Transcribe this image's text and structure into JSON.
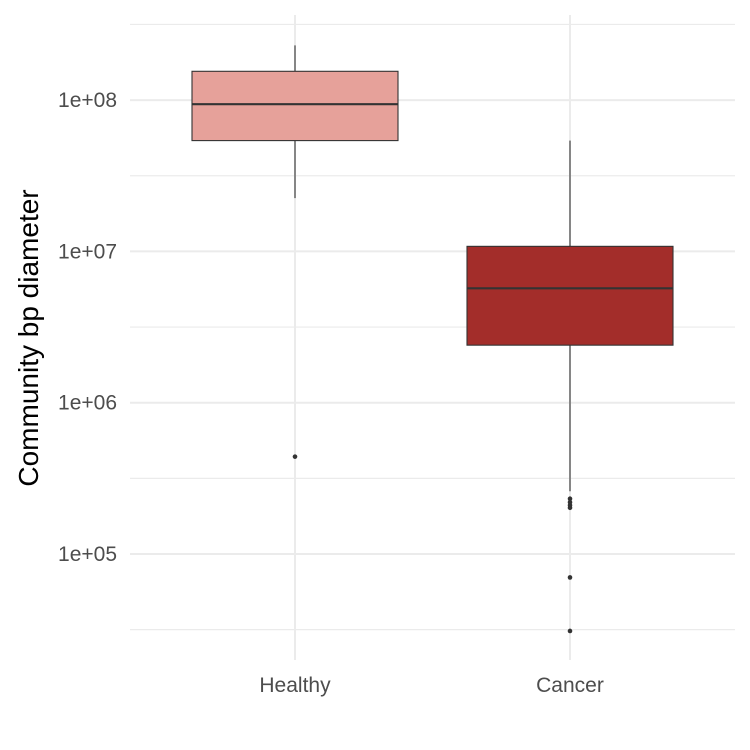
{
  "chart_data": {
    "type": "box",
    "title": "",
    "xlabel": "",
    "ylabel": "Community bp diameter",
    "yscale": "log10",
    "ylim": [
      20000,
      350000000
    ],
    "yticks": [
      {
        "value": 100000,
        "label": "1e+05"
      },
      {
        "value": 1000000,
        "label": "1e+06"
      },
      {
        "value": 10000000,
        "label": "1e+07"
      },
      {
        "value": 100000000,
        "label": "1e+08"
      }
    ],
    "grid": true,
    "legend": "none",
    "categories": [
      "Healthy",
      "Cancer"
    ],
    "boxes": [
      {
        "category": "Healthy",
        "color": "#E6A19A",
        "whisker_low": 22500000,
        "q1": 54000000,
        "median": 94000000,
        "q3": 155000000,
        "whisker_high": 230000000,
        "outliers": [
          440000
        ]
      },
      {
        "category": "Cancer",
        "color": "#A32D2A",
        "whisker_low": 260000,
        "q1": 2400000,
        "median": 5700000,
        "q3": 10800000,
        "whisker_high": 54000000,
        "outliers": [
          232000,
          220000,
          210000,
          202000,
          70000,
          31000
        ]
      }
    ]
  }
}
